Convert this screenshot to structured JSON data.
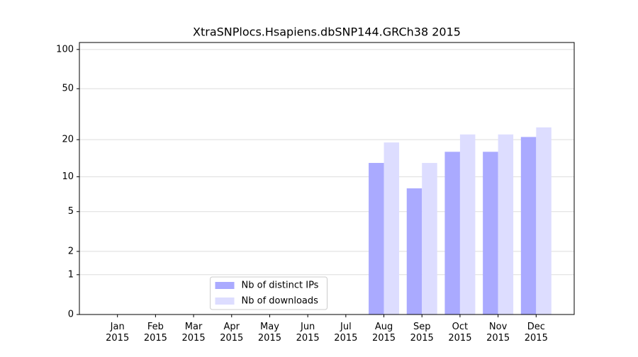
{
  "chart_data": {
    "type": "bar",
    "title": "XtraSNPlocs.Hsapiens.dbSNP144.GRCh38 2015",
    "categories": [
      "Jan 2015",
      "Feb 2015",
      "Mar 2015",
      "Apr 2015",
      "May 2015",
      "Jun 2015",
      "Jul 2015",
      "Aug 2015",
      "Sep 2015",
      "Oct 2015",
      "Nov 2015",
      "Dec 2015"
    ],
    "series": [
      {
        "name": "Nb of distinct IPs",
        "color": "#aaaaff",
        "values": [
          0,
          0,
          0,
          0,
          0,
          0,
          0,
          13,
          8,
          16,
          16,
          21
        ]
      },
      {
        "name": "Nb of downloads",
        "color": "#ddddff",
        "values": [
          0,
          0,
          0,
          0,
          0,
          0,
          0,
          19,
          13,
          22,
          22,
          25
        ]
      }
    ],
    "yscale": "log1p",
    "ylim": [
      0,
      113
    ],
    "yticks": [
      0,
      1,
      2,
      5,
      10,
      20,
      50,
      100
    ],
    "grid": true,
    "legend": "lower center"
  }
}
